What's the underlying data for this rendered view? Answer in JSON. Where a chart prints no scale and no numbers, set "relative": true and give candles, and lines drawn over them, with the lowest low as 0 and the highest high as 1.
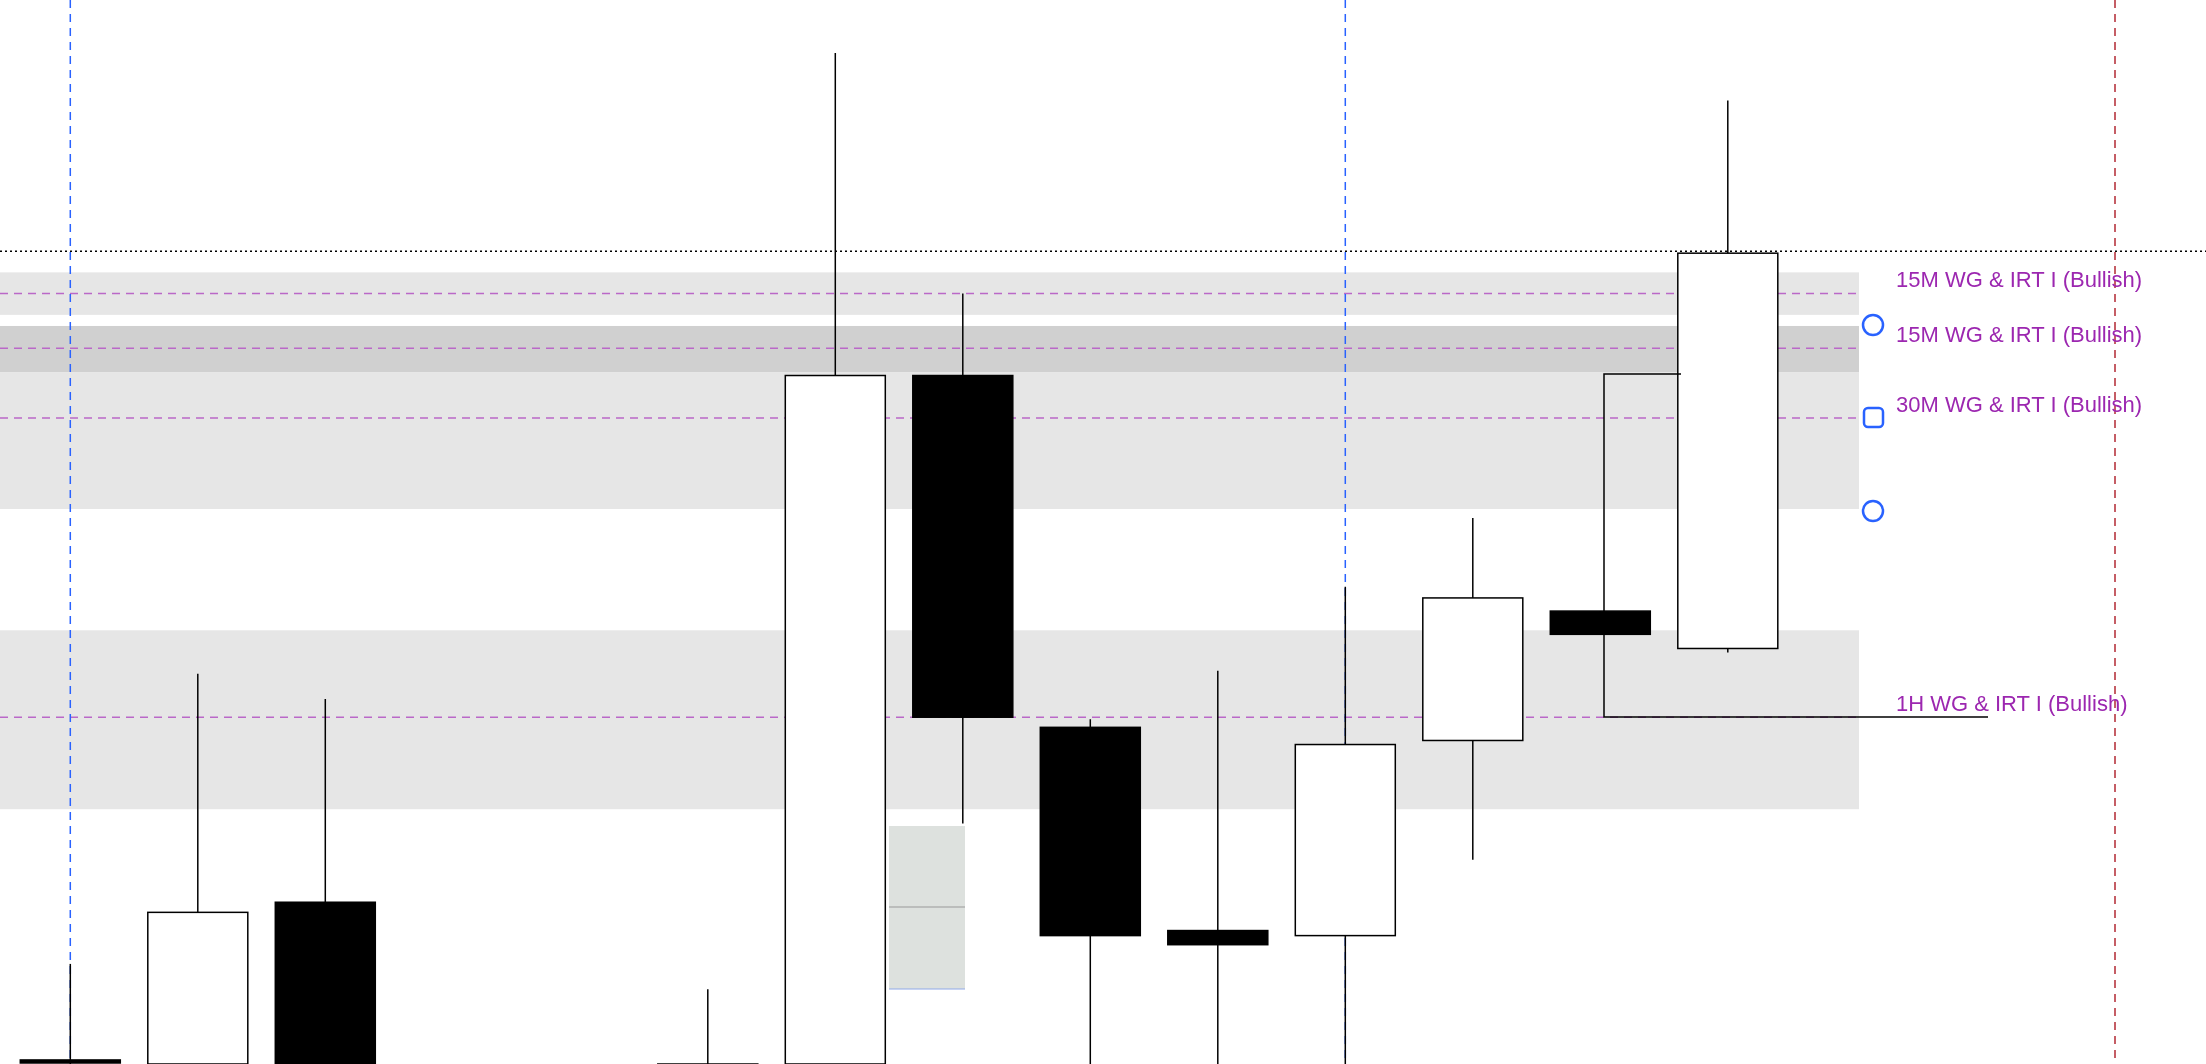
{
  "chart_data": {
    "type": "candlestick",
    "relative": true,
    "categories": [
      null,
      null,
      null,
      null,
      null,
      null,
      null,
      null,
      null,
      null,
      null,
      null,
      null,
      null
    ],
    "ohlc": [
      [
        0.004,
        0.099,
        0,
        0.001
      ],
      [
        0,
        0.386,
        0,
        0.15
      ],
      [
        0.16,
        0.361,
        0,
        0
      ],
      null,
      null,
      [
        0,
        0.074,
        0,
        0
      ],
      [
        0,
        1,
        0,
        0.681
      ],
      [
        0.681,
        0.762,
        0.238,
        0.343
      ],
      [
        0.333,
        0.341,
        0,
        0.127
      ],
      [
        0.132,
        0.389,
        0,
        0.118
      ],
      [
        0.127,
        0.472,
        0,
        0.316
      ],
      [
        0.32,
        0.54,
        0.202,
        0.461
      ],
      [
        0.448,
        0.448,
        0.425,
        0.425
      ],
      [
        0.411,
        0.953,
        0.407,
        0.802
      ]
    ],
    "bands": [
      {
        "axis": "y",
        "from": 0.741,
        "to": 0.783,
        "color": "#e6e6e6"
      },
      {
        "axis": "y",
        "from": 0.684,
        "to": 0.73,
        "color": "#d0d0d0"
      },
      {
        "axis": "y",
        "from": 0.549,
        "to": 0.684,
        "color": "#e6e6e6"
      },
      {
        "axis": "y",
        "from": 0.252,
        "to": 0.429,
        "color": "#e6e6e6"
      }
    ],
    "ref_lines": [
      {
        "axis": "y",
        "value": 0.762,
        "label": "15M WG & IRT I (Bullish)",
        "color": "#ba68c8",
        "line_style": "dashed"
      },
      {
        "axis": "y",
        "value": 0.708,
        "label": "15M WG & IRT I (Bullish)",
        "color": "#ba68c8",
        "line_style": "dashed"
      },
      {
        "axis": "y",
        "value": 0.639,
        "label": "30M WG & IRT I (Bullish)",
        "color": "#ba68c8",
        "line_style": "dashed"
      },
      {
        "axis": "y",
        "value": 0.343,
        "label": "1H WG & IRT I (Bullish)",
        "color": "#ba68c8",
        "line_style": "dashed"
      },
      {
        "axis": "y",
        "value": 0.804,
        "color": "#000000",
        "line_style": "dotted"
      }
    ]
  }
}
